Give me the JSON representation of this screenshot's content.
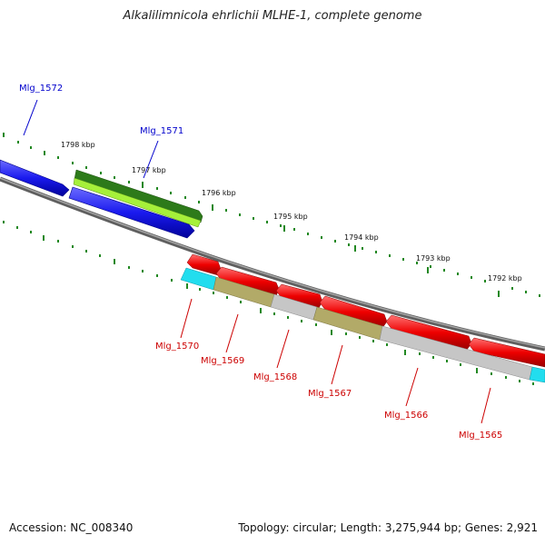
{
  "title": "Alkalilimnicola ehrlichii MLHE-1, complete genome",
  "footer": {
    "accession": "Accession: NC_008340",
    "stats": "Topology: circular; Length: 3,275,944 bp; Genes: 2,921"
  },
  "ruler": {
    "labels": [
      "1798 kbp",
      "1797 kbp",
      "1796 kbp",
      "1795 kbp",
      "1794 kbp",
      "1793 kbp",
      "1792 kbp"
    ]
  },
  "genes": {
    "forward": [
      {
        "name": "Mlg_1572",
        "color": "#0000cc"
      },
      {
        "name": "Mlg_1571",
        "color": "#0000cc"
      }
    ],
    "reverse": [
      {
        "name": "Mlg_1570",
        "color": "#cc0000"
      },
      {
        "name": "Mlg_1569",
        "color": "#cc0000"
      },
      {
        "name": "Mlg_1568",
        "color": "#cc0000"
      },
      {
        "name": "Mlg_1567",
        "color": "#cc0000"
      },
      {
        "name": "Mlg_1566",
        "color": "#cc0000"
      },
      {
        "name": "Mlg_1565",
        "color": "#cc0000"
      }
    ]
  },
  "colors": {
    "forward_cds": "#1a1aee",
    "reverse_cds": "#ee0000",
    "backbone": "#777777",
    "tick": "#228822",
    "rna_cyan": "#22ddee",
    "dark_green": "#2d7a1a",
    "light_green": "#a6f03a",
    "olive": "#b2aa68",
    "gray_feature": "#c6c6c6"
  }
}
